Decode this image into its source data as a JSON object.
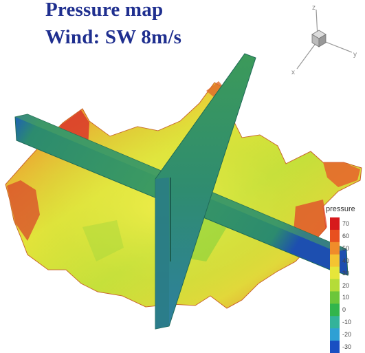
{
  "title": {
    "line1": "Pressure map",
    "line2": "Wind: SW 8m/s"
  },
  "axes_triad": {
    "labels": [
      "z",
      "y",
      "x"
    ]
  },
  "legend": {
    "title": "pressure",
    "ticks": [
      "70",
      "60",
      "50",
      "40",
      "30",
      "20",
      "10",
      "0",
      "-10",
      "-20",
      "-30"
    ],
    "colors": [
      "#d7191c",
      "#e8501f",
      "#f08c2a",
      "#f4c431",
      "#e6e63a",
      "#b5dc38",
      "#6cc63a",
      "#32b54c",
      "#33b39a",
      "#2fa0d4",
      "#1a4fc2"
    ]
  },
  "colors": {
    "title": "#1f2f8f",
    "slice_plane": "#2e8a6e",
    "terrain_high": "#d7191c",
    "terrain_mid": "#e6e63a",
    "terrain_low": "#3fb34a"
  }
}
